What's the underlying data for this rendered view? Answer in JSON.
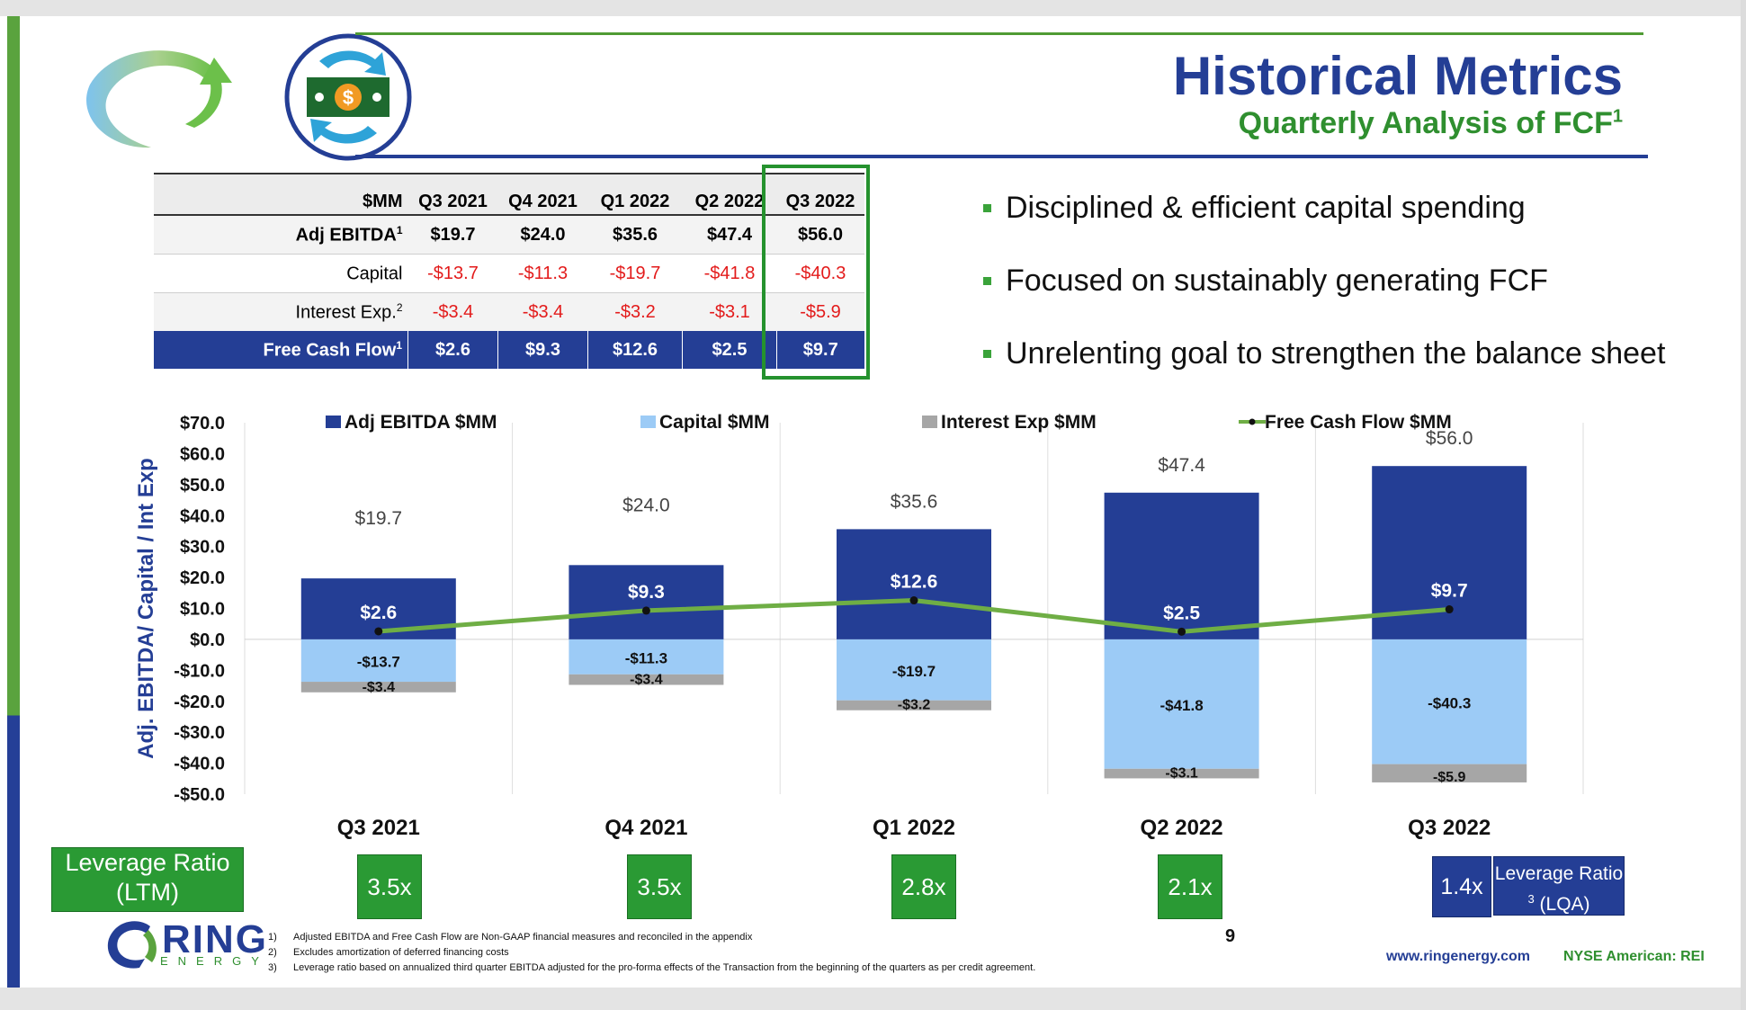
{
  "slide": {
    "title": "Historical Metrics",
    "subtitle": "Quarterly Analysis of FCF",
    "subtitle_sup": "1",
    "page_number": "9",
    "website": "www.ringenergy.com",
    "exchange": "NYSE American: REI",
    "logo_text": "RING",
    "logo_subtext": "ENERGY",
    "icon": "cash-cycle-icon"
  },
  "table": {
    "unit_header": "$MM",
    "columns": [
      "Q3 2021",
      "Q4 2021",
      "Q1 2022",
      "Q2 2022",
      "Q3 2022"
    ],
    "highlighted_column": "Q3 2022",
    "rows": [
      {
        "label": "Adj EBITDA",
        "sup": "1",
        "values": [
          "$19.7",
          "$24.0",
          "$35.6",
          "$47.4",
          "$56.0"
        ]
      },
      {
        "label": "Capital",
        "sup": "",
        "values": [
          "-$13.7",
          "-$11.3",
          "-$19.7",
          "-$41.8",
          "-$40.3"
        ]
      },
      {
        "label": "Interest Exp.",
        "sup": "2",
        "values": [
          "-$3.4",
          "-$3.4",
          "-$3.2",
          "-$3.1",
          "-$5.9"
        ]
      },
      {
        "label": "Free Cash Flow",
        "sup": "1",
        "values": [
          "$2.6",
          "$9.3",
          "$12.6",
          "$2.5",
          "$9.7"
        ]
      }
    ]
  },
  "bullets": [
    "Disciplined & efficient capital spending",
    "Focused on sustainably generating FCF",
    "Unrelenting goal to strengthen the balance sheet"
  ],
  "chart_data": {
    "type": "bar",
    "title": "",
    "xlabel": "",
    "ylabel": "Adj. EBITDA/ Capital / Int Exp",
    "ylim": [
      -50,
      70
    ],
    "yticks": [
      70,
      60,
      50,
      40,
      30,
      20,
      10,
      0,
      -10,
      -20,
      -30,
      -40,
      -50
    ],
    "ytick_labels": [
      "$70.0",
      "$60.0",
      "$50.0",
      "$40.0",
      "$30.0",
      "$20.0",
      "$10.0",
      "$0.0",
      "-$10.0",
      "-$20.0",
      "-$30.0",
      "-$40.0",
      "-$50.0"
    ],
    "categories": [
      "Q3 2021",
      "Q4 2021",
      "Q1 2022",
      "Q2 2022",
      "Q3 2022"
    ],
    "legend_position": "top",
    "grid": "vertical",
    "series": [
      {
        "name": "Adj EBITDA $MM",
        "kind": "bar",
        "color": "#243e95",
        "values": [
          19.7,
          24.0,
          35.6,
          47.4,
          56.0
        ],
        "labels": [
          "$19.7",
          "$24.0",
          "$35.6",
          "$47.4",
          "$56.0"
        ]
      },
      {
        "name": "Capital $MM",
        "kind": "bar",
        "color": "#9ccbf6",
        "values": [
          -13.7,
          -11.3,
          -19.7,
          -41.8,
          -40.3
        ],
        "labels": [
          "-$13.7",
          "-$11.3",
          "-$19.7",
          "-$41.8",
          "-$40.3"
        ]
      },
      {
        "name": "Interest Exp $MM",
        "kind": "bar",
        "color": "#a6a6a6",
        "values": [
          -3.4,
          -3.4,
          -3.2,
          -3.1,
          -5.9
        ],
        "labels": [
          "-$3.4",
          "-$3.4",
          "-$3.2",
          "-$3.1",
          "-$5.9"
        ]
      },
      {
        "name": "Free Cash Flow $MM",
        "kind": "line",
        "color": "#6fae45",
        "values": [
          2.6,
          9.3,
          12.6,
          2.5,
          9.7
        ],
        "labels": [
          "$2.6",
          "$9.3",
          "$12.6",
          "$2.5",
          "$9.7"
        ]
      }
    ]
  },
  "leverage": {
    "ltm_label": "Leverage Ratio (LTM)",
    "ltm_values": [
      "3.5x",
      "3.5x",
      "2.8x",
      "2.1x"
    ],
    "lqa_value": "1.4x",
    "lqa_label": "Leverage Ratio",
    "lqa_sup": "3",
    "lqa_suffix": "(LQA)"
  },
  "footnotes": [
    {
      "num": "1)",
      "text": "Adjusted EBITDA and Free Cash Flow are Non-GAAP financial measures and reconciled in the appendix"
    },
    {
      "num": "2)",
      "text": "Excludes amortization of deferred financing costs"
    },
    {
      "num": "3)",
      "text": "Leverage ratio based on annualized third quarter EBITDA adjusted for the pro-forma effects of the Transaction from the beginning of the quarters as per credit agreement."
    }
  ]
}
